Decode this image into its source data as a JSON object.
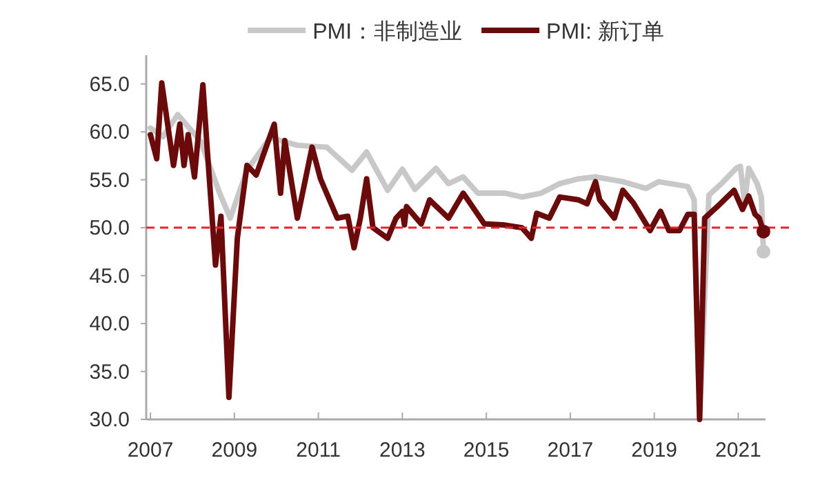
{
  "chart_data": {
    "type": "line",
    "xlim": [
      2006.9,
      2021.65
    ],
    "xticks": [
      2007,
      2009,
      2011,
      2013,
      2015,
      2017,
      2019,
      2021
    ],
    "ylim": [
      30,
      68
    ],
    "yticks": [
      {
        "value": 30,
        "label": "30.0"
      },
      {
        "value": 35,
        "label": "35.0"
      },
      {
        "value": 40,
        "label": "40.0"
      },
      {
        "value": 45,
        "label": "45.0"
      },
      {
        "value": 50,
        "label": "50.0"
      },
      {
        "value": 55,
        "label": "55.0"
      },
      {
        "value": 60,
        "label": "60.0"
      },
      {
        "value": 65,
        "label": "65.0"
      }
    ],
    "grid": false,
    "legend": "top",
    "line_style": "solid",
    "ref_lines": [
      {
        "axis": "y",
        "value": 50,
        "color": "#e8232b",
        "line_style": "dashed"
      }
    ],
    "series": [
      {
        "name": "PMI：非制造业",
        "color": "#c8c8c8",
        "x": [
          2007.0,
          2007.3,
          2007.65,
          2008.2,
          2008.65,
          2008.9,
          2009.3,
          2009.85,
          2010.5,
          2011.2,
          2011.8,
          2012.15,
          2012.65,
          2013.0,
          2013.3,
          2013.8,
          2014.1,
          2014.45,
          2014.8,
          2015.45,
          2015.85,
          2016.3,
          2016.75,
          2017.2,
          2017.6,
          2018.25,
          2018.8,
          2019.1,
          2019.8,
          2019.95,
          2020.08,
          2020.3,
          2020.6,
          2020.95,
          2021.05,
          2021.15,
          2021.25,
          2021.45,
          2021.55,
          2021.6
        ],
        "values": [
          60.4,
          59.5,
          61.8,
          59.0,
          53.6,
          51.0,
          56.0,
          59.4,
          58.6,
          58.4,
          56.0,
          57.9,
          53.9,
          56.1,
          54.0,
          56.2,
          54.6,
          55.3,
          53.6,
          53.6,
          53.2,
          53.6,
          54.6,
          55.1,
          55.3,
          54.8,
          54.1,
          54.8,
          54.3,
          52.9,
          30.0,
          53.4,
          54.6,
          56.2,
          56.4,
          52.6,
          56.2,
          54.6,
          53.2,
          47.5
        ]
      },
      {
        "name": "PMI: 新订单",
        "color": "#6b0a0a",
        "x": [
          2007.0,
          2007.15,
          2007.27,
          2007.55,
          2007.7,
          2007.8,
          2007.9,
          2008.05,
          2008.25,
          2008.35,
          2008.55,
          2008.68,
          2008.87,
          2009.07,
          2009.3,
          2009.52,
          2009.95,
          2010.1,
          2010.2,
          2010.5,
          2010.85,
          2011.05,
          2011.45,
          2011.7,
          2011.85,
          2012.0,
          2012.15,
          2012.3,
          2012.65,
          2012.85,
          2013.0,
          2013.05,
          2013.1,
          2013.45,
          2013.65,
          2014.1,
          2014.45,
          2014.95,
          2015.4,
          2015.85,
          2016.07,
          2016.2,
          2016.5,
          2016.75,
          2017.2,
          2017.4,
          2017.6,
          2017.7,
          2018.05,
          2018.25,
          2018.5,
          2018.9,
          2019.15,
          2019.35,
          2019.6,
          2019.8,
          2019.95,
          2020.08,
          2020.2,
          2020.5,
          2020.9,
          2021.1,
          2021.25,
          2021.4,
          2021.5,
          2021.6
        ],
        "values": [
          59.7,
          57.2,
          65.1,
          56.5,
          60.8,
          56.5,
          59.7,
          55.3,
          64.9,
          58.4,
          46.1,
          51.2,
          32.3,
          48.9,
          56.5,
          55.5,
          60.8,
          53.6,
          59.1,
          51.0,
          58.4,
          55.1,
          51.0,
          51.2,
          47.9,
          51.0,
          55.1,
          50.0,
          48.9,
          51.0,
          51.7,
          50.3,
          52.2,
          50.4,
          52.9,
          51.0,
          53.6,
          50.4,
          50.3,
          50.0,
          48.9,
          51.5,
          51.0,
          53.2,
          52.9,
          52.5,
          54.8,
          52.9,
          51.0,
          53.9,
          52.6,
          49.7,
          51.7,
          49.7,
          49.7,
          51.4,
          51.4,
          30.0,
          51.0,
          52.2,
          53.9,
          51.9,
          53.3,
          51.4,
          51.0,
          49.6
        ]
      },
      {
        "type": "scatter",
        "color": "#c8c8c8",
        "x": [
          2021.6
        ],
        "values": [
          47.5
        ]
      },
      {
        "type": "scatter",
        "color": "#6b0a0a",
        "x": [
          2021.6
        ],
        "values": [
          49.6
        ]
      }
    ]
  }
}
